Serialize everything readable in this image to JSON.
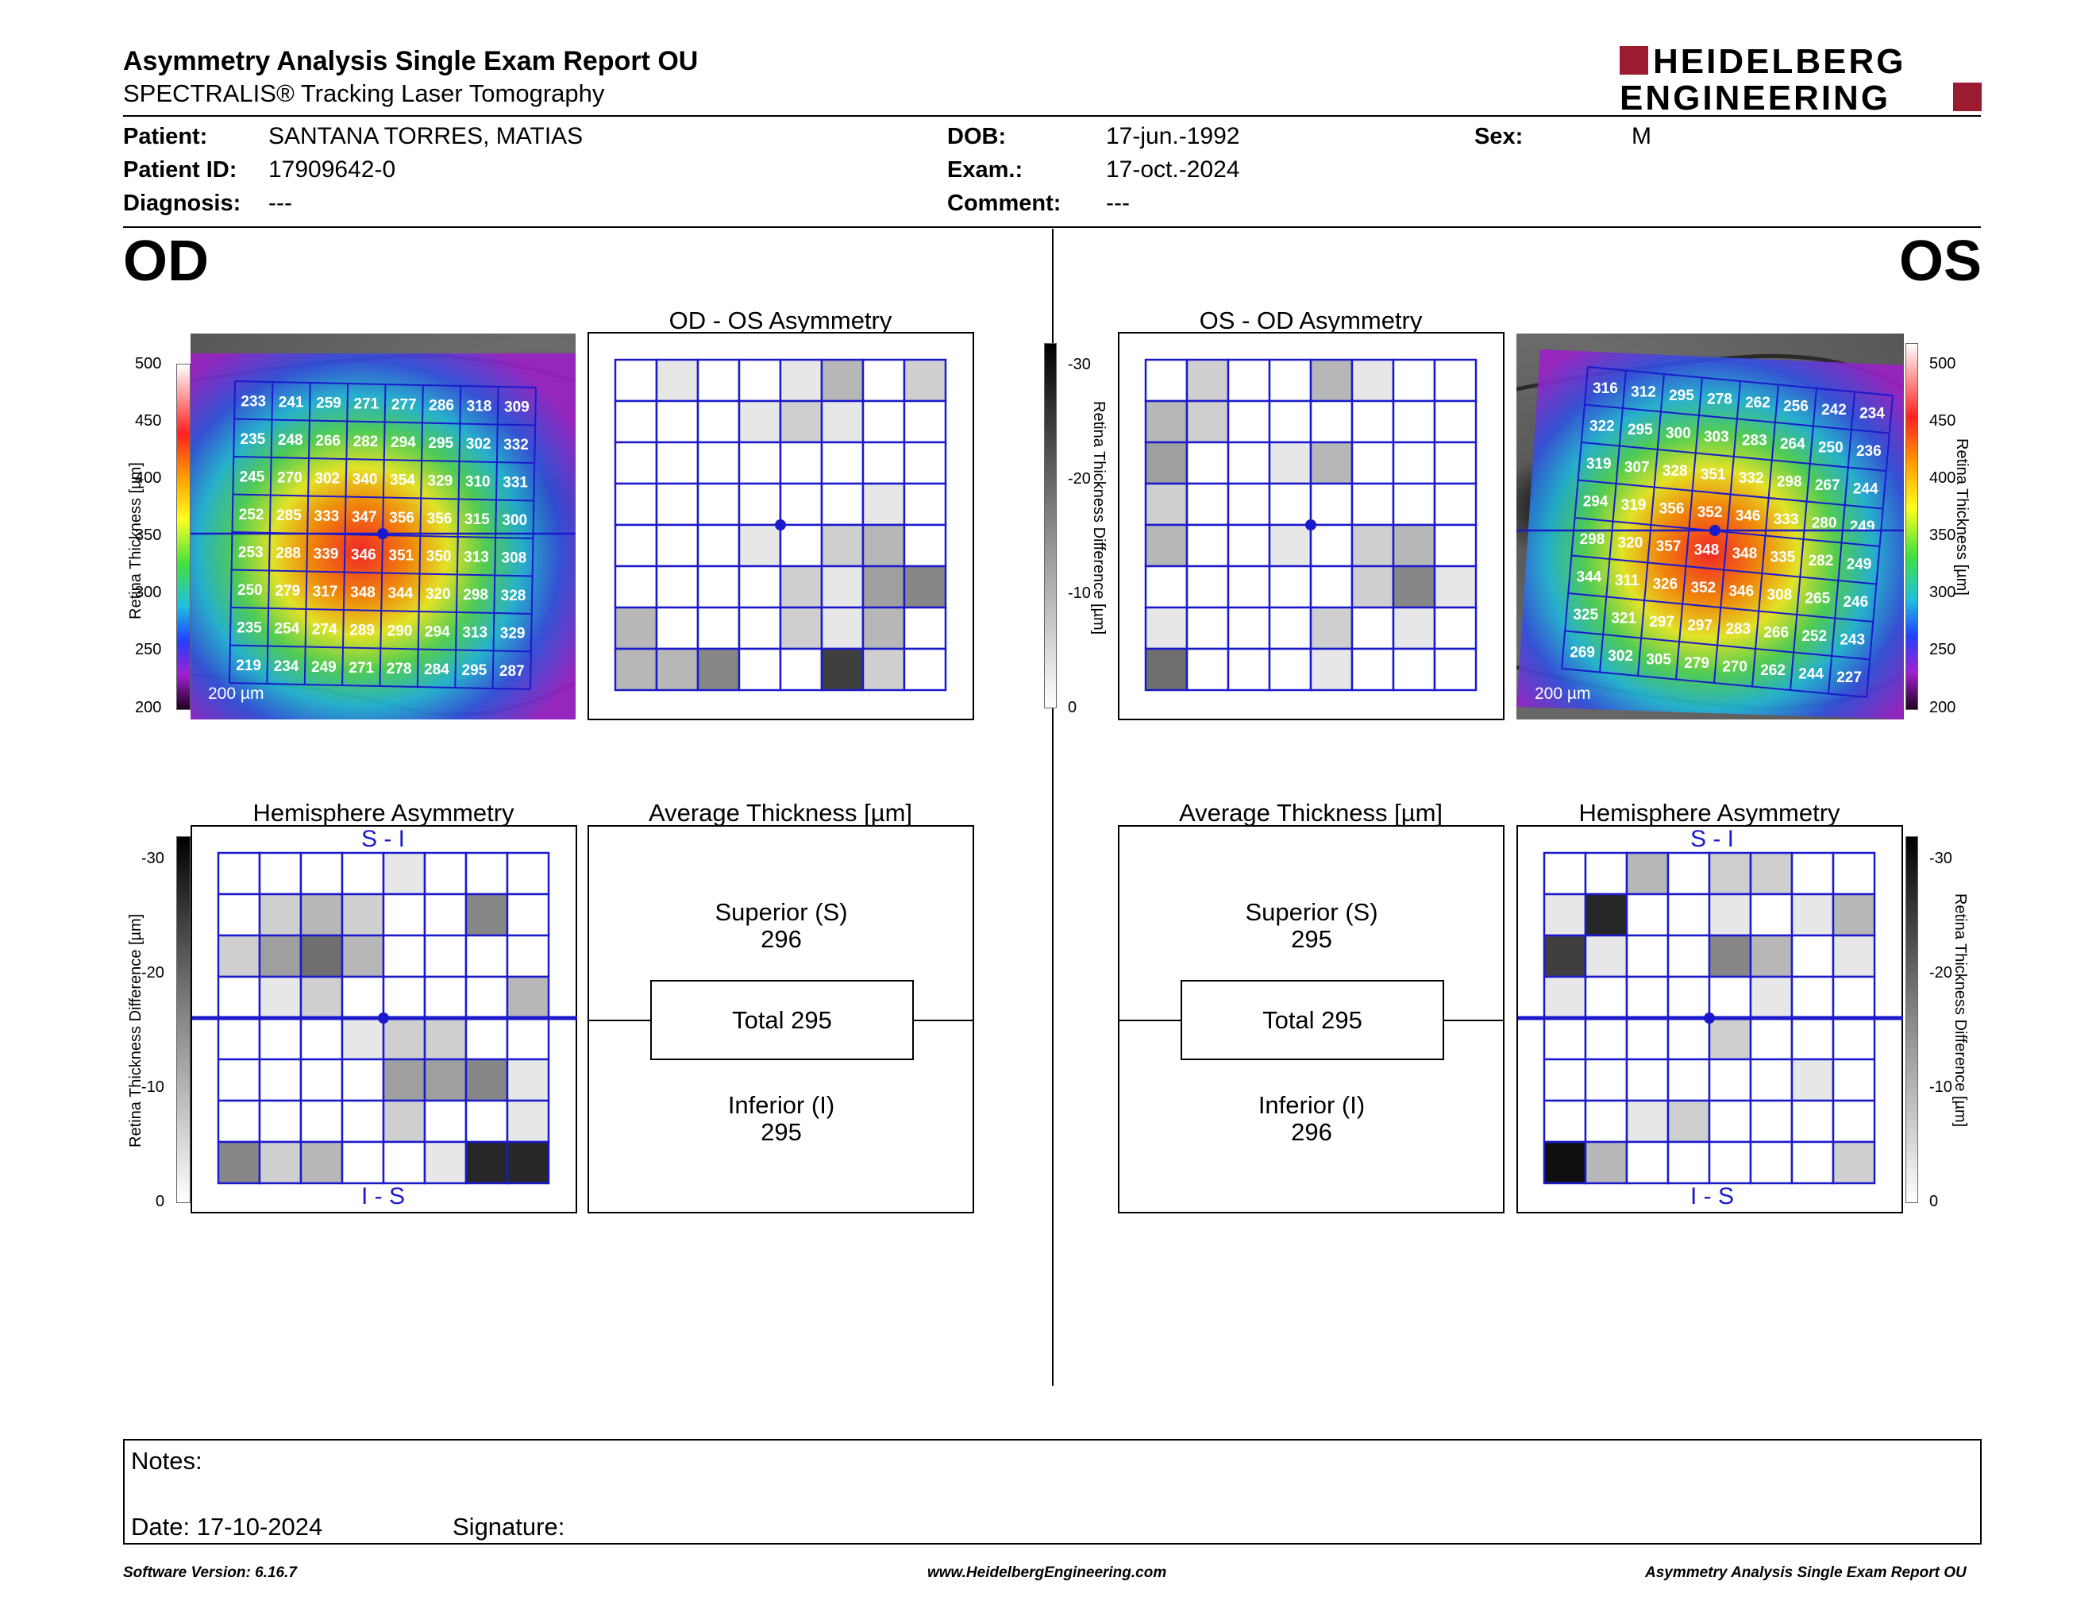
{
  "header": {
    "title": "Asymmetry Analysis Single Exam Report OU",
    "subtitle": "SPECTRALIS® Tracking Laser Tomography",
    "logo_line1": "HEIDELBERG",
    "logo_line2": "ENGINEERING",
    "brand_color": "#9b1b30"
  },
  "patient": {
    "patient_label": "Patient:",
    "patient_value": "SANTANA TORRES, MATIAS",
    "id_label": "Patient ID:",
    "id_value": "17909642-0",
    "diagnosis_label": "Diagnosis:",
    "diagnosis_value": "---",
    "dob_label": "DOB:",
    "dob_value": "17-jun.-1992",
    "exam_label": "Exam.:",
    "exam_value": "17-oct.-2024",
    "comment_label": "Comment:",
    "comment_value": "---",
    "sex_label": "Sex:",
    "sex_value": "M"
  },
  "od": {
    "eye_label": "OD",
    "asym_title": "OD - OS Asymmetry",
    "hemi_title": "Hemisphere Asymmetry",
    "avg_title": "Average Thickness [µm]",
    "superior_label": "Superior (S)",
    "superior_value": "296",
    "total_label": "Total 295",
    "inferior_label": "Inferior (I)",
    "inferior_value": "295",
    "hemi_top": "S - I",
    "hemi_bottom": "I - S",
    "scale_label": "200 µm",
    "thickness_axis_label": "Retina  Thickness [µm]",
    "thickness_grid": [
      [
        233,
        241,
        259,
        271,
        277,
        286,
        318,
        309
      ],
      [
        235,
        248,
        266,
        282,
        294,
        295,
        302,
        332
      ],
      [
        245,
        270,
        302,
        340,
        354,
        329,
        310,
        331
      ],
      [
        252,
        285,
        333,
        347,
        356,
        356,
        315,
        300
      ],
      [
        253,
        288,
        339,
        346,
        351,
        350,
        313,
        308
      ],
      [
        250,
        279,
        317,
        348,
        344,
        320,
        298,
        328
      ],
      [
        235,
        254,
        274,
        289,
        290,
        294,
        313,
        329
      ],
      [
        219,
        234,
        249,
        271,
        278,
        284,
        295,
        287
      ]
    ],
    "asym_grid": [
      [
        0,
        1,
        0,
        0,
        1,
        3,
        0,
        2
      ],
      [
        0,
        0,
        0,
        1,
        2,
        1,
        0,
        0
      ],
      [
        0,
        0,
        0,
        0,
        0,
        0,
        0,
        0
      ],
      [
        0,
        0,
        0,
        0,
        0,
        0,
        1,
        0
      ],
      [
        0,
        0,
        0,
        1,
        0,
        2,
        3,
        0
      ],
      [
        0,
        0,
        0,
        0,
        2,
        1,
        4,
        5
      ],
      [
        3,
        0,
        0,
        0,
        2,
        1,
        3,
        0
      ],
      [
        3,
        3,
        5,
        0,
        0,
        8,
        2,
        0
      ]
    ],
    "hemi_grid": [
      [
        0,
        0,
        0,
        0,
        1,
        0,
        0,
        0
      ],
      [
        0,
        2,
        3,
        2,
        0,
        0,
        5,
        0
      ],
      [
        2,
        4,
        6,
        3,
        0,
        0,
        0,
        0
      ],
      [
        0,
        1,
        2,
        0,
        0,
        0,
        0,
        3
      ],
      [
        0,
        0,
        0,
        1,
        2,
        2,
        0,
        0
      ],
      [
        0,
        0,
        0,
        0,
        4,
        4,
        5,
        1
      ],
      [
        0,
        0,
        0,
        0,
        2,
        0,
        0,
        1
      ],
      [
        5,
        2,
        3,
        0,
        0,
        1,
        9,
        9
      ]
    ]
  },
  "os": {
    "eye_label": "OS",
    "asym_title": "OS - OD Asymmetry",
    "hemi_title": "Hemisphere Asymmetry",
    "avg_title": "Average Thickness [µm]",
    "superior_label": "Superior (S)",
    "superior_value": "295",
    "total_label": "Total 295",
    "inferior_label": "Inferior (I)",
    "inferior_value": "296",
    "hemi_top": "S - I",
    "hemi_bottom": "I - S",
    "scale_label": "200 µm",
    "thickness_axis_label": "Retina  Thickness [µm]",
    "thickness_grid": [
      [
        316,
        312,
        295,
        278,
        262,
        256,
        242,
        234
      ],
      [
        322,
        295,
        300,
        303,
        283,
        264,
        250,
        236
      ],
      [
        319,
        307,
        328,
        351,
        332,
        298,
        267,
        244
      ],
      [
        294,
        319,
        356,
        352,
        346,
        333,
        280,
        249
      ],
      [
        298,
        320,
        357,
        348,
        348,
        335,
        282,
        249
      ],
      [
        344,
        311,
        326,
        352,
        346,
        308,
        265,
        246
      ],
      [
        325,
        321,
        297,
        297,
        283,
        266,
        252,
        243
      ],
      [
        269,
        302,
        305,
        279,
        270,
        262,
        244,
        227
      ]
    ],
    "asym_grid": [
      [
        0,
        2,
        0,
        0,
        3,
        1,
        0,
        0
      ],
      [
        3,
        2,
        0,
        0,
        0,
        0,
        0,
        0
      ],
      [
        4,
        0,
        0,
        1,
        3,
        0,
        0,
        0
      ],
      [
        2,
        0,
        0,
        0,
        0,
        0,
        0,
        0
      ],
      [
        3,
        0,
        0,
        1,
        0,
        2,
        3,
        0
      ],
      [
        0,
        0,
        0,
        0,
        0,
        2,
        5,
        1
      ],
      [
        1,
        0,
        0,
        0,
        2,
        0,
        1,
        0
      ],
      [
        6,
        0,
        0,
        0,
        1,
        0,
        0,
        0
      ]
    ],
    "hemi_grid": [
      [
        0,
        0,
        3,
        0,
        2,
        2,
        0,
        0
      ],
      [
        1,
        9,
        0,
        0,
        1,
        0,
        1,
        3
      ],
      [
        8,
        1,
        0,
        0,
        5,
        3,
        0,
        1
      ],
      [
        1,
        0,
        0,
        0,
        0,
        1,
        0,
        0
      ],
      [
        0,
        0,
        0,
        0,
        2,
        0,
        0,
        0
      ],
      [
        0,
        0,
        0,
        0,
        0,
        0,
        1,
        0
      ],
      [
        0,
        0,
        1,
        2,
        0,
        0,
        0,
        0
      ],
      [
        10,
        3,
        0,
        0,
        0,
        0,
        0,
        2
      ]
    ]
  },
  "colorbars": {
    "thickness_ticks": [
      "500",
      "450",
      "400",
      "350",
      "300",
      "250",
      "200"
    ],
    "difference_ticks": [
      "-30",
      "-20",
      "-10",
      "0"
    ],
    "difference_label": "Retina Thickness Difference [µm]"
  },
  "notes": {
    "notes_label": "Notes:",
    "date_label": "Date: 17-10-2024",
    "signature_label": "Signature:"
  },
  "footer": {
    "software": "Software Version: 6.16.7",
    "website": "www.HeidelbergEngineering.com",
    "report": "Asymmetry Analysis Single Exam Report OU"
  }
}
